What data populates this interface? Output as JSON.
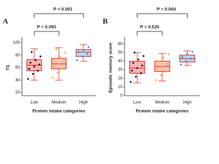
{
  "chart_data": [
    {
      "type": "box",
      "panel_label": "A",
      "ylabel": "TS",
      "xlabel": "Protein intake categories",
      "categories": [
        "Low",
        "Medium",
        "High"
      ],
      "boxes": [
        {
          "min": 40,
          "q1": 55,
          "median": 64,
          "q3": 73,
          "max": 90
        },
        {
          "min": 40,
          "q1": 58,
          "median": 66,
          "q3": 75,
          "max": 92
        },
        {
          "min": 70,
          "q1": 78,
          "median": 85,
          "q3": 89,
          "max": 97
        }
      ],
      "points": [
        {
          "color": "#111111",
          "values": [
            42,
            50,
            55,
            58,
            62,
            65,
            68,
            72,
            78,
            85
          ]
        },
        {
          "color": "#e0b830",
          "values": [
            44,
            52,
            58,
            62,
            66,
            70,
            74,
            78,
            84,
            90
          ]
        },
        {
          "color": "#3a8fd0",
          "values": [
            72,
            78,
            82,
            85,
            88,
            93
          ]
        }
      ],
      "box_fill": [
        "#f6b3b3",
        "#f6c2b0",
        "#b9d9f0"
      ],
      "box_edge": "#e03030",
      "ylim": [
        15,
        105
      ],
      "yticks": [
        20,
        40,
        60,
        80,
        100
      ],
      "annotations": [
        "P = 0.093",
        "P < 0.001"
      ]
    },
    {
      "type": "box",
      "panel_label": "B",
      "ylabel": "Episodic memory score",
      "xlabel": "Protein intake categories",
      "categories": [
        "Low",
        "Medium",
        "High"
      ],
      "boxes": [
        {
          "min": 15,
          "q1": 26,
          "median": 32,
          "q3": 40,
          "max": 50
        },
        {
          "min": 17,
          "q1": 28,
          "median": 34,
          "q3": 40,
          "max": 49
        },
        {
          "min": 35,
          "q1": 39,
          "median": 43,
          "q3": 47,
          "max": 52
        }
      ],
      "points": [
        {
          "color": "#111111",
          "values": [
            16,
            22,
            26,
            29,
            32,
            35,
            38,
            42,
            46,
            50
          ]
        },
        {
          "color": "#e0b830",
          "values": [
            18,
            24,
            28,
            31,
            34,
            37,
            40,
            44,
            48
          ]
        },
        {
          "color": "#3a8fd0",
          "values": [
            36,
            40,
            43,
            45,
            48,
            51
          ]
        }
      ],
      "box_fill": [
        "#f6b3b3",
        "#f6c2b0",
        "#b9d9f0"
      ],
      "box_edge": "#e03030",
      "ylim": [
        0,
        65
      ],
      "yticks": [
        0,
        10,
        20,
        30,
        40,
        50,
        60
      ],
      "annotations": [
        "P = 0.520",
        "P = 0.004"
      ]
    }
  ]
}
